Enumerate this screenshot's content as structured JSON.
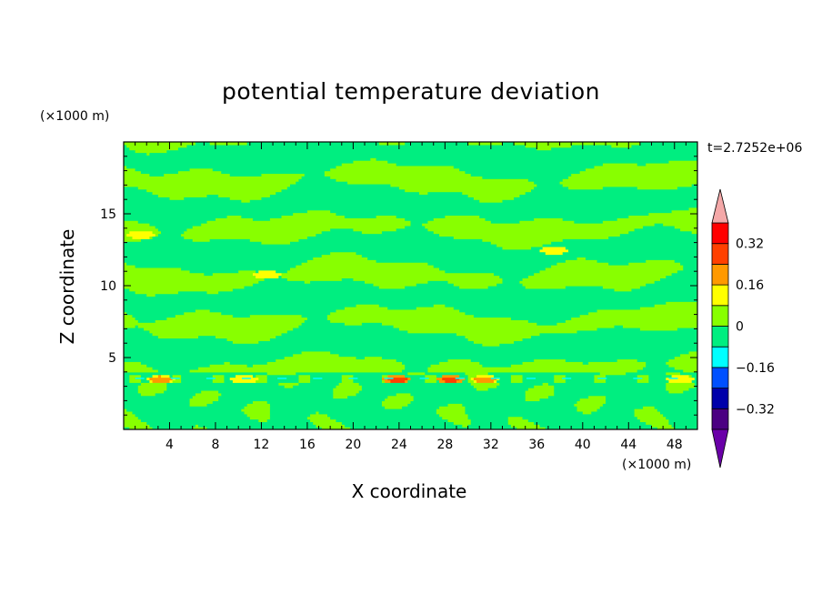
{
  "chart_data": {
    "type": "heatmap",
    "title": "potential temperature deviation",
    "xlabel": "X coordinate",
    "ylabel": "Z coordinate",
    "x_unit_label": "(×1000 m)",
    "y_unit_label": "(×1000 m)",
    "time_label": "t=2.7252e+06",
    "xlim": [
      0,
      50
    ],
    "ylim": [
      0,
      20
    ],
    "x_ticks": [
      4,
      8,
      12,
      16,
      20,
      24,
      28,
      32,
      36,
      40,
      44,
      48
    ],
    "y_ticks": [
      5,
      10,
      15
    ],
    "colorbar": {
      "levels": [
        -0.4,
        -0.32,
        -0.24,
        -0.16,
        -0.08,
        0,
        0.08,
        0.16,
        0.24,
        0.32,
        0.4
      ],
      "labels": [
        {
          "value": 0.32,
          "text": "0.32"
        },
        {
          "value": 0.16,
          "text": "0.16"
        },
        {
          "value": 0,
          "text": "0"
        },
        {
          "value": -0.16,
          "text": "−0.16"
        },
        {
          "value": -0.32,
          "text": "−0.32"
        }
      ],
      "colors": [
        "#4b0082",
        "#0000aa",
        "#0050ff",
        "#00ffff",
        "#00ee80",
        "#88ff00",
        "#ffff00",
        "#ff9900",
        "#ff4000",
        "#ff0000"
      ],
      "over_color": "#f4a8a8",
      "under_color": "#6a00a8"
    },
    "regions": [
      {
        "band": "above 5 km",
        "dominant": [
          0,
          0.08
        ],
        "alternating": [
          -0.08,
          0
        ]
      },
      {
        "band": "near 3.5 km",
        "min": -0.24,
        "max": 0.32
      },
      {
        "band": "below 3.5 km",
        "dominant": [
          -0.08,
          0
        ]
      }
    ],
    "warm_anomalies": [
      {
        "x": 1.5,
        "z": 13.6,
        "value": 0.16
      },
      {
        "x": 12.5,
        "z": 10.8,
        "value": 0.16
      },
      {
        "x": 37.5,
        "z": 12.5,
        "value": 0.16
      },
      {
        "x": 3.2,
        "z": 3.5,
        "value": 0.24
      },
      {
        "x": 10.5,
        "z": 3.5,
        "value": 0.16
      },
      {
        "x": 23.8,
        "z": 3.5,
        "value": 0.32
      },
      {
        "x": 28.5,
        "z": 3.5,
        "value": 0.32
      },
      {
        "x": 31.5,
        "z": 3.5,
        "value": 0.24
      },
      {
        "x": 48.5,
        "z": 3.5,
        "value": 0.16
      }
    ]
  }
}
